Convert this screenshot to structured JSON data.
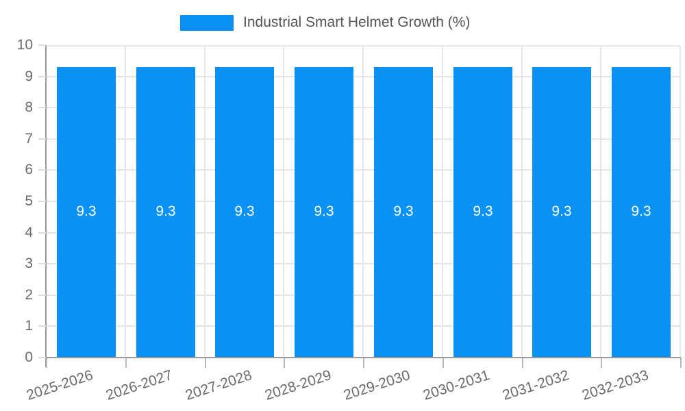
{
  "legend": {
    "label": "Industrial Smart Helmet Growth (%)",
    "swatch_color": "#0991f5"
  },
  "chart_data": {
    "type": "bar",
    "title": "Industrial Smart Helmet Growth (%)",
    "categories": [
      "2025-2026",
      "2026-2027",
      "2027-2028",
      "2028-2029",
      "2029-2030",
      "2030-2031",
      "2031-2032",
      "2032-2033"
    ],
    "series": [
      {
        "name": "Industrial Smart Helmet Growth (%)",
        "values": [
          9.3,
          9.3,
          9.3,
          9.3,
          9.3,
          9.3,
          9.3,
          9.3
        ]
      }
    ],
    "value_label_decimals": 1,
    "xlabel": "",
    "ylabel": "",
    "ylim": [
      0,
      10
    ],
    "yticks": [
      0,
      1,
      2,
      3,
      4,
      5,
      6,
      7,
      8,
      9,
      10
    ],
    "grid": true,
    "legend_position": "top-center",
    "bar_color": "#0991f5",
    "value_label_color": "#ffffff",
    "axis_color": "#9a9a9a",
    "grid_color": "#e6e6e6",
    "tick_label_color": "#6b6b6b"
  }
}
